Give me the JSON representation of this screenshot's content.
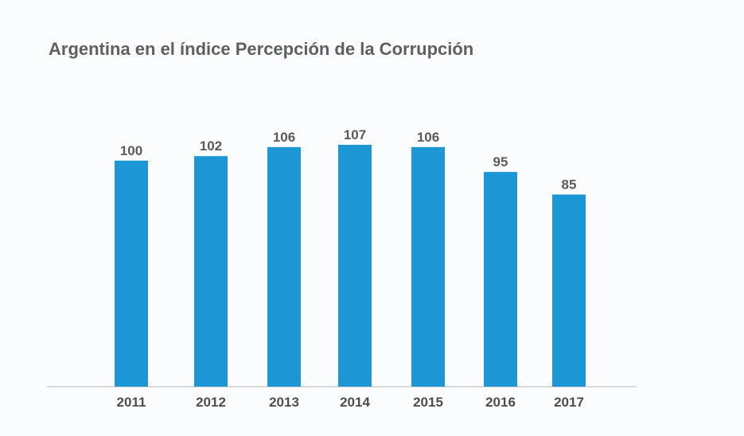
{
  "chart_data": {
    "type": "bar",
    "title": "Argentina en el índice Percepción de la Corrupción",
    "categories": [
      "2011",
      "2012",
      "2013",
      "2014",
      "2015",
      "2016",
      "2017"
    ],
    "values": [
      100,
      102,
      106,
      107,
      106,
      95,
      85
    ],
    "xlabel": "",
    "ylabel": "",
    "ylim": [
      0,
      107
    ],
    "grid": false,
    "legend": "none",
    "bar_color": "#1c96d5",
    "axis_color": "#b9b9bb",
    "text_color": "#5f5f61"
  }
}
